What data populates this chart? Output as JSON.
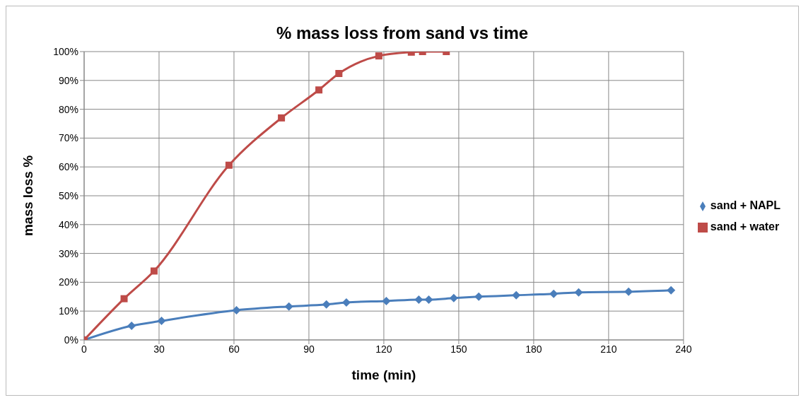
{
  "chart_data": {
    "type": "line",
    "title": "% mass loss from sand vs time",
    "xlabel": "time (min)",
    "ylabel": "mass loss %",
    "xlim": [
      0,
      240
    ],
    "xticks": [
      0,
      30,
      60,
      90,
      120,
      150,
      180,
      210,
      240
    ],
    "ylim": [
      0,
      100
    ],
    "yticks": [
      {
        "value": 0,
        "label": "0%"
      },
      {
        "value": 10,
        "label": "10%"
      },
      {
        "value": 20,
        "label": "20%"
      },
      {
        "value": 30,
        "label": "30%"
      },
      {
        "value": 40,
        "label": "40%"
      },
      {
        "value": 50,
        "label": "50%"
      },
      {
        "value": 60,
        "label": "60%"
      },
      {
        "value": 70,
        "label": "70%"
      },
      {
        "value": 80,
        "label": "80%"
      },
      {
        "value": 90,
        "label": "90%"
      },
      {
        "value": 100,
        "label": "100%"
      }
    ],
    "grid": true,
    "legend": "right",
    "line_style": "solid",
    "series": [
      {
        "name": "sand + NAPL",
        "color": "#4a7ebb",
        "marker": "diamond",
        "x": [
          0,
          19,
          31,
          61,
          82,
          97,
          105,
          121,
          134,
          138,
          148,
          158,
          173,
          188,
          198,
          218,
          235
        ],
        "values": [
          0,
          4.9,
          6.6,
          10.3,
          11.6,
          12.3,
          13,
          13.5,
          14,
          14,
          14.5,
          15,
          15.5,
          16,
          16.5,
          16.7,
          17.2
        ]
      },
      {
        "name": "sand + water",
        "color": "#be4b48",
        "marker": "square",
        "x": [
          0,
          16,
          28,
          58,
          79,
          94,
          102,
          118,
          131,
          135.5,
          145
        ],
        "values": [
          0,
          14.3,
          23.9,
          60.6,
          77,
          86.7,
          92.4,
          98.5,
          99.8,
          100,
          100
        ]
      }
    ]
  }
}
